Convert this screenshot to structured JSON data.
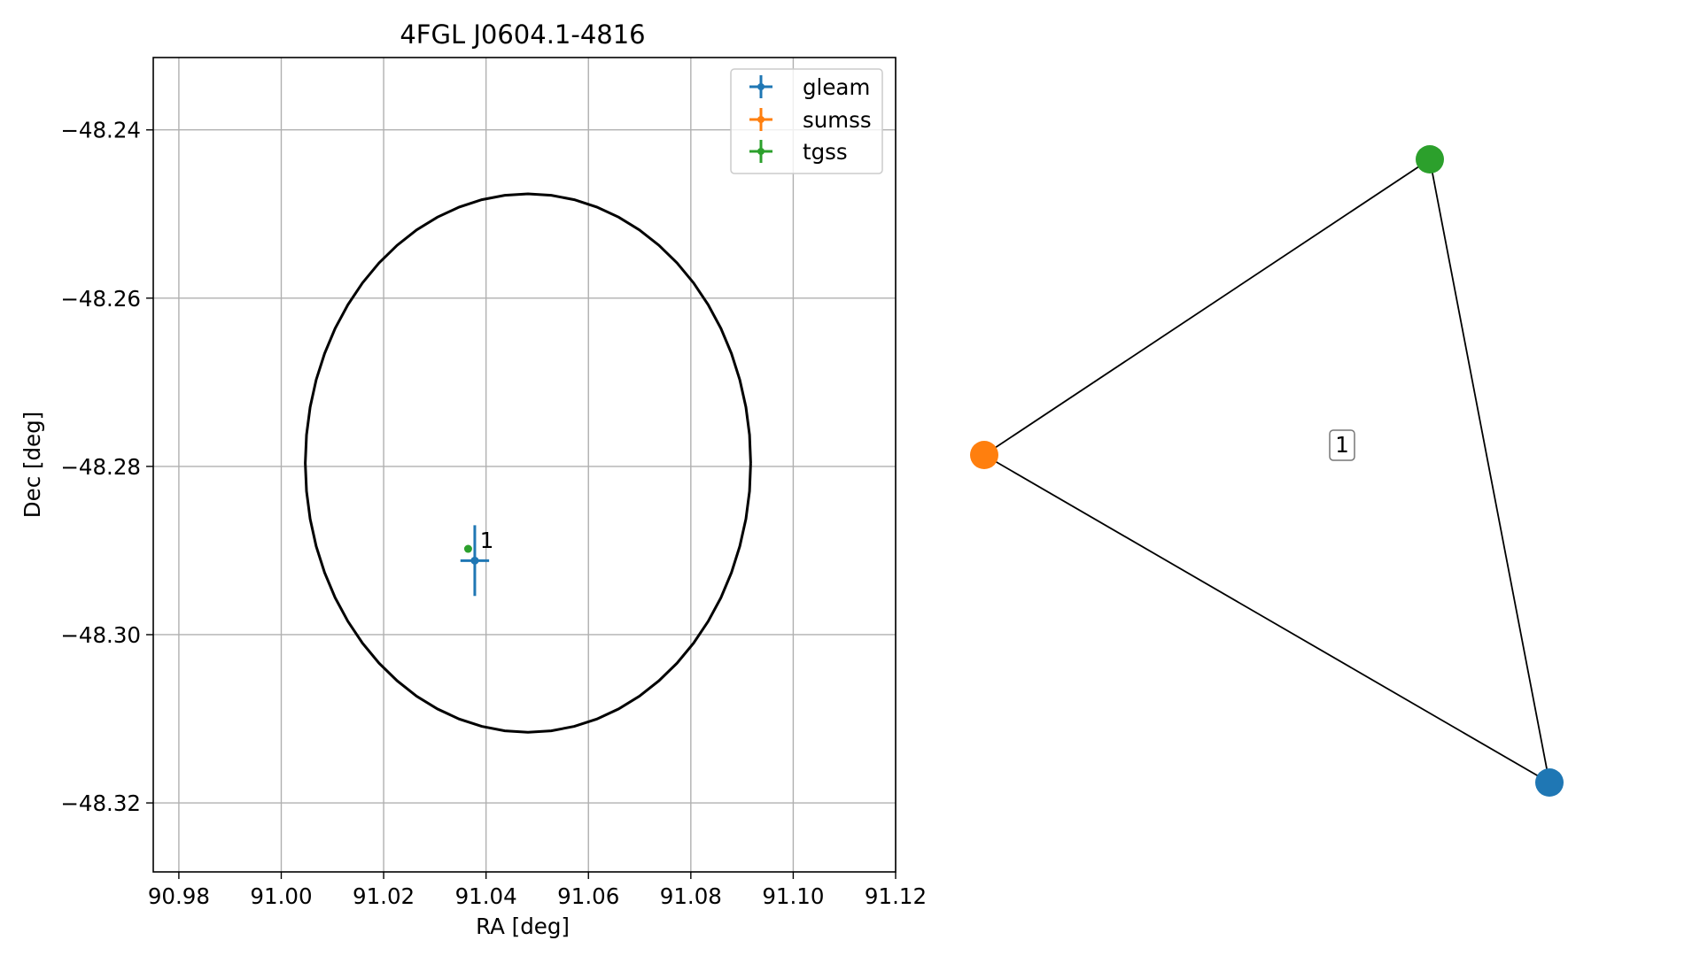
{
  "chart_data": [
    {
      "type": "scatter",
      "title": "4FGL J0604.1-4816",
      "xlabel": "RA [deg]",
      "ylabel": "Dec [deg]",
      "xlim": [
        90.975,
        91.12
      ],
      "ylim": [
        -48.3282,
        -48.2314
      ],
      "xticks": [
        90.98,
        91.0,
        91.02,
        91.04,
        91.06,
        91.08,
        91.1,
        91.12
      ],
      "xtick_labels": [
        "90.98",
        "91.00",
        "91.02",
        "91.04",
        "91.06",
        "91.08",
        "91.10",
        "91.12"
      ],
      "yticks": [
        -48.24,
        -48.26,
        -48.28,
        -48.3,
        -48.32
      ],
      "ytick_labels": [
        "−48.24",
        "−48.26",
        "−48.28",
        "−48.30",
        "−48.32"
      ],
      "grid": true,
      "legend_position": "top-right",
      "series": [
        {
          "name": "gleam",
          "color": "#1f77b4",
          "points": [
            {
              "x": 91.0378,
              "y": -48.2912,
              "xerr": 0.0028,
              "yerr": 0.0042
            }
          ]
        },
        {
          "name": "sumss",
          "color": "#ff7f0e",
          "points": []
        },
        {
          "name": "tgss",
          "color": "#2ca02c",
          "points": [
            {
              "x": 91.0365,
              "y": -48.2898,
              "xerr": 0.0004,
              "yerr": 0.0004
            }
          ]
        }
      ],
      "ellipse": {
        "center_x": 91.0482,
        "center_y": -48.2796,
        "semi_axis_x": 0.0435,
        "semi_axis_y": 0.032,
        "color": "#000000"
      },
      "annotations": [
        {
          "text": "1",
          "x": 91.0388,
          "y": -48.2897
        }
      ]
    },
    {
      "type": "diagram",
      "nodes": [
        {
          "id": "gleam",
          "color": "#1f77b4"
        },
        {
          "id": "sumss",
          "color": "#ff7f0e"
        },
        {
          "id": "tgss",
          "color": "#2ca02c"
        }
      ],
      "edges": [
        [
          "gleam",
          "sumss"
        ],
        [
          "sumss",
          "tgss"
        ],
        [
          "tgss",
          "gleam"
        ]
      ],
      "label": "1"
    }
  ]
}
